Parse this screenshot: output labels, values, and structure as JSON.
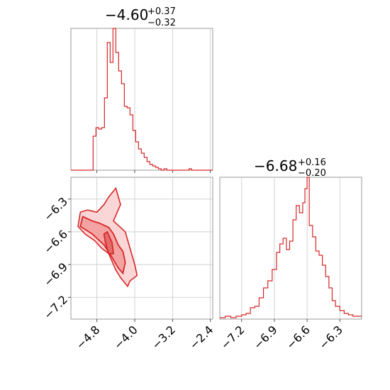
{
  "chart_data": [
    {
      "type": "histogram",
      "panel": "top-left",
      "title": {
        "main": "−4.60",
        "sup": "+0.37",
        "sub": "−0.32"
      },
      "xlim": [
        -5.35,
        -2.35
      ],
      "ylim": [
        0,
        1
      ],
      "grid": true,
      "color": "#d62728",
      "bins": [
        [
          -5.35,
          0.0
        ],
        [
          -4.91,
          0.0
        ],
        [
          -4.88,
          0.24
        ],
        [
          -4.82,
          0.3
        ],
        [
          -4.76,
          0.29
        ],
        [
          -4.7,
          0.3
        ],
        [
          -4.64,
          0.51
        ],
        [
          -4.58,
          0.9
        ],
        [
          -4.52,
          0.76
        ],
        [
          -4.46,
          1.0
        ],
        [
          -4.4,
          0.83
        ],
        [
          -4.34,
          0.7
        ],
        [
          -4.28,
          0.61
        ],
        [
          -4.22,
          0.45
        ],
        [
          -4.16,
          0.44
        ],
        [
          -4.1,
          0.39
        ],
        [
          -4.04,
          0.28
        ],
        [
          -3.98,
          0.2
        ],
        [
          -3.92,
          0.15
        ],
        [
          -3.86,
          0.12
        ],
        [
          -3.8,
          0.09
        ],
        [
          -3.74,
          0.06
        ],
        [
          -3.68,
          0.04
        ],
        [
          -3.62,
          0.03
        ],
        [
          -3.56,
          0.02
        ],
        [
          -3.5,
          0.01
        ],
        [
          -3.44,
          0.0
        ],
        [
          -3.38,
          0.01
        ],
        [
          -3.32,
          0.0
        ],
        [
          -2.85,
          0.01
        ],
        [
          -2.8,
          0.0
        ],
        [
          -2.35,
          0.0
        ]
      ]
    },
    {
      "type": "contour",
      "panel": "bottom-left",
      "xlim": [
        -5.35,
        -2.35
      ],
      "ylim": [
        -7.4,
        -6.1
      ],
      "xticks": [
        "−4.8",
        "−4.0",
        "−3.2",
        "−2.4"
      ],
      "xtick_values": [
        -4.8,
        -4.0,
        -3.2,
        -2.4
      ],
      "yticks": [
        "−6.3",
        "−6.6",
        "−6.9",
        "−7.2"
      ],
      "ytick_values": [
        -6.3,
        -6.6,
        -6.9,
        -7.2
      ],
      "grid": true,
      "color": "#d62728",
      "contour_outer": [
        [
          -5.2,
          -6.55
        ],
        [
          -5.15,
          -6.42
        ],
        [
          -5.0,
          -6.4
        ],
        [
          -4.8,
          -6.42
        ],
        [
          -4.65,
          -6.35
        ],
        [
          -4.55,
          -6.28
        ],
        [
          -4.4,
          -6.2
        ],
        [
          -4.3,
          -6.35
        ],
        [
          -4.45,
          -6.5
        ],
        [
          -4.2,
          -6.6
        ],
        [
          -4.1,
          -6.75
        ],
        [
          -4.0,
          -6.9
        ],
        [
          -3.95,
          -7.0
        ],
        [
          -4.1,
          -7.05
        ],
        [
          -4.15,
          -7.1
        ],
        [
          -4.3,
          -7.02
        ],
        [
          -4.4,
          -6.95
        ],
        [
          -4.55,
          -6.8
        ],
        [
          -4.7,
          -6.75
        ],
        [
          -4.85,
          -6.68
        ],
        [
          -5.05,
          -6.62
        ]
      ],
      "contour_mid": [
        [
          -5.15,
          -6.55
        ],
        [
          -5.1,
          -6.46
        ],
        [
          -4.9,
          -6.5
        ],
        [
          -4.75,
          -6.52
        ],
        [
          -4.55,
          -6.56
        ],
        [
          -4.45,
          -6.62
        ],
        [
          -4.35,
          -6.72
        ],
        [
          -4.25,
          -6.78
        ],
        [
          -4.2,
          -6.88
        ],
        [
          -4.25,
          -6.98
        ],
        [
          -4.35,
          -6.93
        ],
        [
          -4.5,
          -6.82
        ],
        [
          -4.65,
          -6.72
        ],
        [
          -4.9,
          -6.62
        ]
      ],
      "contour_inner": [
        [
          -4.65,
          -6.62
        ],
        [
          -4.58,
          -6.6
        ],
        [
          -4.48,
          -6.7
        ],
        [
          -4.45,
          -6.8
        ],
        [
          -4.55,
          -6.8
        ],
        [
          -4.62,
          -6.7
        ]
      ]
    },
    {
      "type": "histogram",
      "panel": "bottom-right",
      "title": {
        "main": "−6.68",
        "sup": "+0.16",
        "sub": "−0.20"
      },
      "xlim": [
        -7.4,
        -6.1
      ],
      "ylim": [
        0,
        1
      ],
      "xticks": [
        "−7.2",
        "−6.9",
        "−6.6",
        "−6.3"
      ],
      "xtick_values": [
        -7.2,
        -6.9,
        -6.6,
        -6.3
      ],
      "grid": true,
      "color": "#d62728",
      "bins": [
        [
          -7.4,
          0.01
        ],
        [
          -7.35,
          0.02
        ],
        [
          -7.3,
          0.01
        ],
        [
          -7.25,
          0.02
        ],
        [
          -7.2,
          0.03
        ],
        [
          -7.16,
          0.04
        ],
        [
          -7.12,
          0.08
        ],
        [
          -7.08,
          0.09
        ],
        [
          -7.04,
          0.15
        ],
        [
          -7.0,
          0.22
        ],
        [
          -6.96,
          0.27
        ],
        [
          -6.92,
          0.35
        ],
        [
          -6.88,
          0.47
        ],
        [
          -6.85,
          0.53
        ],
        [
          -6.82,
          0.57
        ],
        [
          -6.79,
          0.49
        ],
        [
          -6.76,
          0.55
        ],
        [
          -6.73,
          0.7
        ],
        [
          -6.7,
          0.8
        ],
        [
          -6.67,
          0.75
        ],
        [
          -6.64,
          0.82
        ],
        [
          -6.62,
          0.92
        ],
        [
          -6.6,
          1.0
        ],
        [
          -6.58,
          0.66
        ],
        [
          -6.55,
          0.58
        ],
        [
          -6.52,
          0.48
        ],
        [
          -6.49,
          0.45
        ],
        [
          -6.46,
          0.38
        ],
        [
          -6.43,
          0.3
        ],
        [
          -6.4,
          0.22
        ],
        [
          -6.37,
          0.13
        ],
        [
          -6.34,
          0.09
        ],
        [
          -6.3,
          0.06
        ],
        [
          -6.26,
          0.04
        ],
        [
          -6.22,
          0.03
        ],
        [
          -6.18,
          0.02
        ],
        [
          -6.14,
          0.02
        ],
        [
          -6.1,
          0.02
        ]
      ]
    }
  ]
}
